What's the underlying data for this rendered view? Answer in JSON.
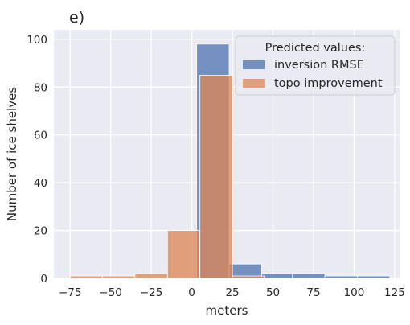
{
  "chart_data": {
    "type": "histogram",
    "panel_label": "e)",
    "xlabel": "meters",
    "ylabel": "Number of ice shelves",
    "xlim": [
      -85,
      128
    ],
    "ylim": [
      0,
      104
    ],
    "xticks": [
      -75,
      -50,
      -25,
      0,
      25,
      50,
      75,
      100,
      125
    ],
    "yticks": [
      0,
      20,
      40,
      60,
      80,
      100
    ],
    "grid": true,
    "legend": {
      "title": "Predicted values:",
      "placement": "top-right"
    },
    "series": [
      {
        "name": "inversion RMSE",
        "color": "#4c72b0",
        "bins": [
          {
            "x0": 3,
            "x1": 23,
            "count": 98
          },
          {
            "x0": 23,
            "x1": 43,
            "count": 6
          },
          {
            "x0": 43,
            "x1": 62,
            "count": 2
          },
          {
            "x0": 62,
            "x1": 82,
            "count": 2
          },
          {
            "x0": 82,
            "x1": 102,
            "count": 1
          },
          {
            "x0": 102,
            "x1": 122,
            "count": 1
          }
        ]
      },
      {
        "name": "topo improvement",
        "color": "#dd8452",
        "bins": [
          {
            "x0": -75,
            "x1": -55,
            "count": 1
          },
          {
            "x0": -55,
            "x1": -35,
            "count": 1
          },
          {
            "x0": -35,
            "x1": -15,
            "count": 2
          },
          {
            "x0": -15,
            "x1": 5,
            "count": 20
          },
          {
            "x0": 5,
            "x1": 25,
            "count": 85
          },
          {
            "x0": 25,
            "x1": 45,
            "count": 1
          }
        ]
      }
    ]
  }
}
